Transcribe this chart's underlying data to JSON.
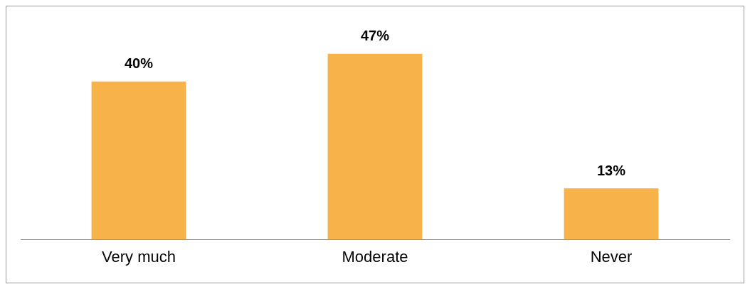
{
  "chart_data": {
    "type": "bar",
    "categories": [
      "Very much",
      "Moderate",
      "Never"
    ],
    "values": [
      40,
      47,
      13
    ],
    "value_labels": [
      "40%",
      "47%",
      "13%"
    ],
    "color": "#f7b24a",
    "grid": false,
    "legend": false
  }
}
